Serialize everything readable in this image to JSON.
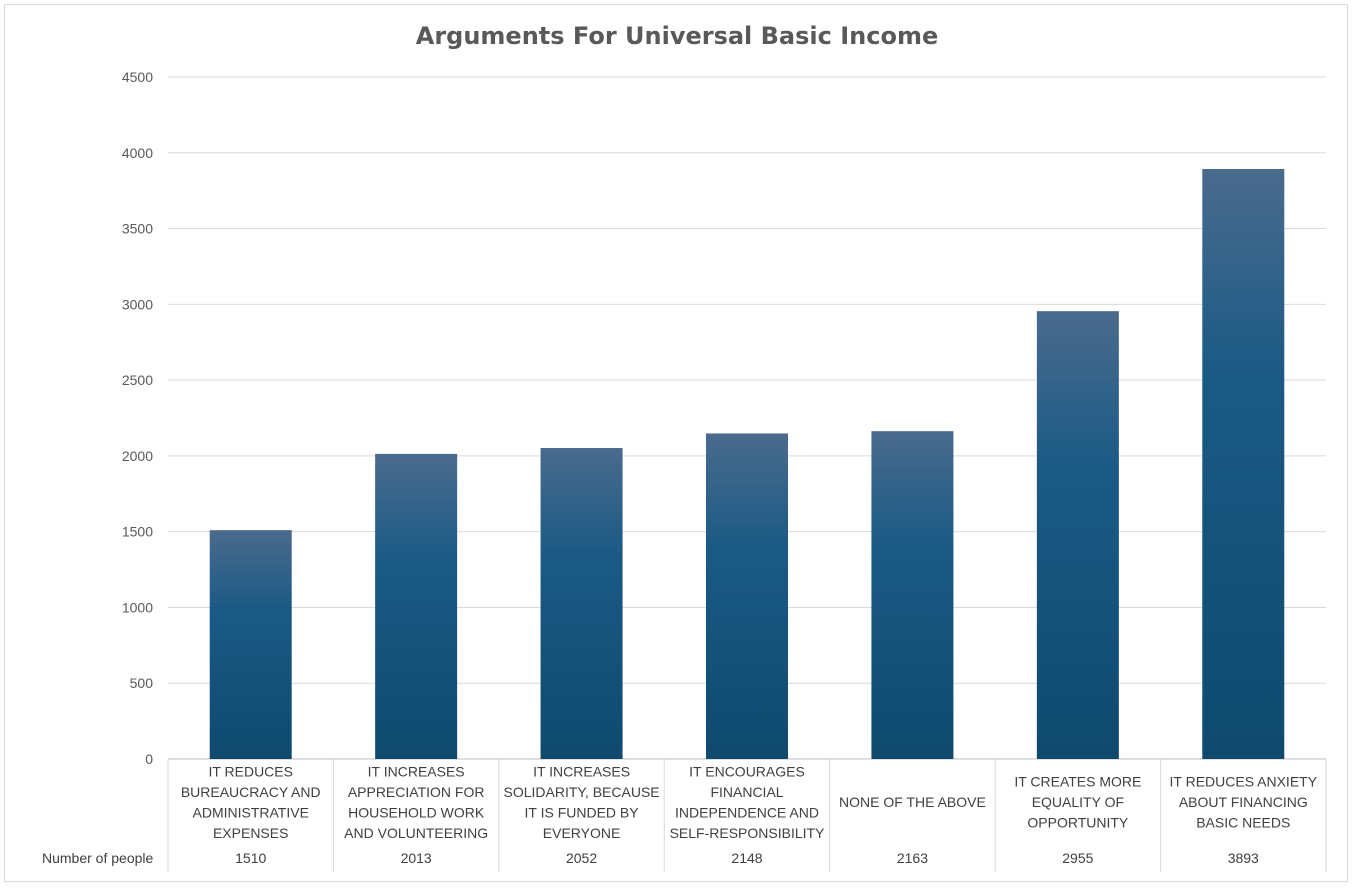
{
  "chart_data": {
    "type": "bar",
    "title": "Arguments For Universal Basic Income",
    "categories": [
      "IT REDUCES BUREAUCRACY AND ADMINISTRATIVE EXPENSES",
      "IT INCREASES APPRECIATION FOR HOUSEHOLD WORK AND VOLUNTEERING",
      "IT INCREASES SOLIDARITY, BECAUSE IT IS FUNDED BY EVERYONE",
      "IT ENCOURAGES FINANCIAL INDEPENDENCE AND SELF-RESPONSIBILITY",
      "NONE OF THE ABOVE",
      "IT CREATES MORE EQUALITY OF OPPORTUNITY",
      "IT REDUCES ANXIETY ABOUT FINANCING BASIC NEEDS"
    ],
    "category_lines": [
      [
        "IT REDUCES",
        "BUREAUCRACY AND",
        "ADMINISTRATIVE",
        "EXPENSES"
      ],
      [
        "IT INCREASES",
        "APPRECIATION FOR",
        "HOUSEHOLD WORK",
        "AND VOLUNTEERING"
      ],
      [
        "IT INCREASES",
        "SOLIDARITY, BECAUSE",
        "IT IS FUNDED BY",
        "EVERYONE"
      ],
      [
        "IT ENCOURAGES",
        "FINANCIAL",
        "INDEPENDENCE AND",
        "SELF-RESPONSIBILITY"
      ],
      [
        "NONE OF THE ABOVE"
      ],
      [
        "IT CREATES MORE",
        "EQUALITY OF",
        "OPPORTUNITY"
      ],
      [
        "IT REDUCES ANXIETY",
        "ABOUT FINANCING",
        "BASIC NEEDS"
      ]
    ],
    "series": [
      {
        "name": "Number of people",
        "values": [
          1510,
          2013,
          2052,
          2148,
          2163,
          2955,
          3893
        ]
      }
    ],
    "value_labels": [
      "1510",
      "2013",
      "2052",
      "2148",
      "2163",
      "2955",
      "3893"
    ],
    "ylim": [
      0,
      4500
    ],
    "yticks": [
      0,
      500,
      1000,
      1500,
      2000,
      2500,
      3000,
      3500,
      4000,
      4500
    ],
    "grid": true,
    "legend": "data table below chart",
    "colors": {
      "bar_top": "#4a6b8d",
      "bar_mid": "#1a5a85",
      "bar_bottom": "#0f4a6e",
      "grid": "#d9d9d9",
      "axis": "#bfbfbf"
    }
  }
}
